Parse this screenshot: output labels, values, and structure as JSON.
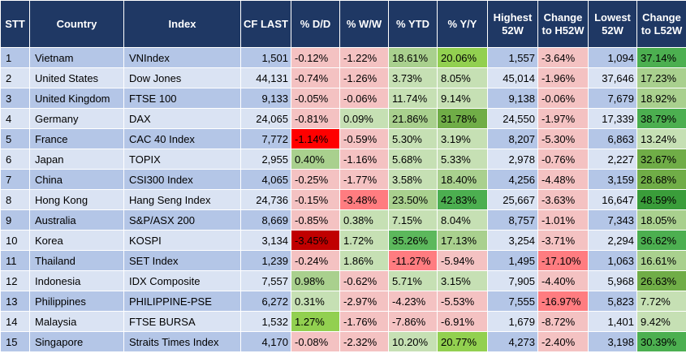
{
  "columns": [
    "STT",
    "Country",
    "Index",
    "CF LAST",
    "% D/D",
    "% W/W",
    "% YTD",
    "% Y/Y",
    "Highest 52W",
    "Change to H52W",
    "Lowest 52W",
    "Change to L52W"
  ],
  "rows": [
    {
      "stt": "1",
      "country": "Vietnam",
      "index": "VNIndex",
      "last": "1,501",
      "dd": "-0.12%",
      "ww": "-1.22%",
      "ytd": "18.61%",
      "yy": "20.06%",
      "high": "1,557",
      "chg_high": "-3.64%",
      "low": "1,094",
      "chg_low": "37.14%",
      "colors": {
        "dd": "#f4c2c2",
        "ww": "#f4c2c2",
        "ytd": "#a9d08e",
        "yy": "#92d050",
        "chg_high": "#f4c2c2",
        "chg_low": "#4caf50"
      }
    },
    {
      "stt": "2",
      "country": "United States",
      "index": "Dow Jones",
      "last": "44,131",
      "dd": "-0.74%",
      "ww": "-1.26%",
      "ytd": "3.73%",
      "yy": "8.05%",
      "high": "45,014",
      "chg_high": "-1.96%",
      "low": "37,646",
      "chg_low": "17.23%",
      "colors": {
        "dd": "#f4c2c2",
        "ww": "#f4c2c2",
        "ytd": "#c6e0b4",
        "yy": "#c6e0b4",
        "chg_high": "#f4c2c2",
        "chg_low": "#a9d08e"
      }
    },
    {
      "stt": "3",
      "country": "United Kingdom",
      "index": "FTSE 100",
      "last": "9,133",
      "dd": "-0.05%",
      "ww": "-0.06%",
      "ytd": "11.74%",
      "yy": "9.14%",
      "high": "9,138",
      "chg_high": "-0.06%",
      "low": "7,679",
      "chg_low": "18.92%",
      "colors": {
        "dd": "#f4c2c2",
        "ww": "#f4c2c2",
        "ytd": "#c6e0b4",
        "yy": "#c6e0b4",
        "chg_high": "#f4c2c2",
        "chg_low": "#a9d08e"
      }
    },
    {
      "stt": "4",
      "country": "Germany",
      "index": "DAX",
      "last": "24,065",
      "dd": "-0.81%",
      "ww": "0.09%",
      "ytd": "21.86%",
      "yy": "31.78%",
      "high": "24,550",
      "chg_high": "-1.97%",
      "low": "17,339",
      "chg_low": "38.79%",
      "colors": {
        "dd": "#f4c2c2",
        "ww": "#c6e0b4",
        "ytd": "#a9d08e",
        "yy": "#70ad47",
        "chg_high": "#f4c2c2",
        "chg_low": "#4caf50"
      }
    },
    {
      "stt": "5",
      "country": "France",
      "index": "CAC 40 Index",
      "last": "7,772",
      "dd": "-1.14%",
      "ww": "-0.59%",
      "ytd": "5.30%",
      "yy": "3.19%",
      "high": "8,207",
      "chg_high": "-5.30%",
      "low": "6,863",
      "chg_low": "13.24%",
      "colors": {
        "dd": "#ff0000",
        "ww": "#f4c2c2",
        "ytd": "#c6e0b4",
        "yy": "#c6e0b4",
        "chg_high": "#f4c2c2",
        "chg_low": "#c6e0b4"
      }
    },
    {
      "stt": "6",
      "country": "Japan",
      "index": "TOPIX",
      "last": "2,955",
      "dd": "0.40%",
      "ww": "-1.16%",
      "ytd": "5.68%",
      "yy": "5.33%",
      "high": "2,978",
      "chg_high": "-0.76%",
      "low": "2,227",
      "chg_low": "32.67%",
      "colors": {
        "dd": "#a9d08e",
        "ww": "#f4c2c2",
        "ytd": "#c6e0b4",
        "yy": "#c6e0b4",
        "chg_high": "#f4c2c2",
        "chg_low": "#70ad47"
      }
    },
    {
      "stt": "7",
      "country": "China",
      "index": "CSI300 Index",
      "last": "4,065",
      "dd": "-0.25%",
      "ww": "-1.77%",
      "ytd": "3.58%",
      "yy": "18.40%",
      "high": "4,256",
      "chg_high": "-4.48%",
      "low": "3,159",
      "chg_low": "28.68%",
      "colors": {
        "dd": "#f4c2c2",
        "ww": "#f4c2c2",
        "ytd": "#c6e0b4",
        "yy": "#a9d08e",
        "chg_high": "#f4c2c2",
        "chg_low": "#70ad47"
      }
    },
    {
      "stt": "8",
      "country": "Hong Kong",
      "index": "Hang Seng Index",
      "last": "24,736",
      "dd": "-0.15%",
      "ww": "-3.48%",
      "ytd": "23.50%",
      "yy": "42.83%",
      "high": "25,667",
      "chg_high": "-3.63%",
      "low": "16,647",
      "chg_low": "48.59%",
      "colors": {
        "dd": "#f4c2c2",
        "ww": "#ff7c80",
        "ytd": "#a9d08e",
        "yy": "#4caf50",
        "chg_high": "#f4c2c2",
        "chg_low": "#3a9d3a"
      }
    },
    {
      "stt": "9",
      "country": "Australia",
      "index": "S&P/ASX 200",
      "last": "8,669",
      "dd": "-0.85%",
      "ww": "0.38%",
      "ytd": "7.15%",
      "yy": "8.04%",
      "high": "8,757",
      "chg_high": "-1.01%",
      "low": "7,343",
      "chg_low": "18.05%",
      "colors": {
        "dd": "#f4c2c2",
        "ww": "#c6e0b4",
        "ytd": "#c6e0b4",
        "yy": "#c6e0b4",
        "chg_high": "#f4c2c2",
        "chg_low": "#a9d08e"
      }
    },
    {
      "stt": "10",
      "country": "Korea",
      "index": "KOSPI",
      "last": "3,134",
      "dd": "-3.45%",
      "ww": "1.72%",
      "ytd": "35.26%",
      "yy": "17.13%",
      "high": "3,254",
      "chg_high": "-3.71%",
      "low": "2,294",
      "chg_low": "36.62%",
      "colors": {
        "dd": "#c00000",
        "ww": "#c6e0b4",
        "ytd": "#5cb85c",
        "yy": "#a9d08e",
        "chg_high": "#f4c2c2",
        "chg_low": "#4caf50"
      }
    },
    {
      "stt": "11",
      "country": "Thailand",
      "index": "SET Index",
      "last": "1,239",
      "dd": "-0.24%",
      "ww": "1.86%",
      "ytd": "-11.27%",
      "yy": "-5.94%",
      "high": "1,495",
      "chg_high": "-17.10%",
      "low": "1,063",
      "chg_low": "16.61%",
      "colors": {
        "dd": "#f4c2c2",
        "ww": "#c6e0b4",
        "ytd": "#ff7c80",
        "yy": "#f4c2c2",
        "chg_high": "#ff7c80",
        "chg_low": "#a9d08e"
      }
    },
    {
      "stt": "12",
      "country": "Indonesia",
      "index": "IDX Composite",
      "last": "7,557",
      "dd": "0.98%",
      "ww": "-0.62%",
      "ytd": "5.71%",
      "yy": "3.15%",
      "high": "7,905",
      "chg_high": "-4.40%",
      "low": "5,968",
      "chg_low": "26.63%",
      "colors": {
        "dd": "#a9d08e",
        "ww": "#f4c2c2",
        "ytd": "#c6e0b4",
        "yy": "#c6e0b4",
        "chg_high": "#f4c2c2",
        "chg_low": "#70ad47"
      }
    },
    {
      "stt": "13",
      "country": "Philippines",
      "index": "PHILIPPINE-PSE",
      "last": "6,272",
      "dd": "0.31%",
      "ww": "-2.97%",
      "ytd": "-4.23%",
      "yy": "-5.53%",
      "high": "7,555",
      "chg_high": "-16.97%",
      "low": "5,823",
      "chg_low": "7.72%",
      "colors": {
        "dd": "#c6e0b4",
        "ww": "#f4c2c2",
        "ytd": "#f4c2c2",
        "yy": "#f4c2c2",
        "chg_high": "#ff7c80",
        "chg_low": "#c6e0b4"
      }
    },
    {
      "stt": "14",
      "country": "Malaysia",
      "index": "FTSE BURSA",
      "last": "1,532",
      "dd": "1.27%",
      "ww": "-1.76%",
      "ytd": "-7.86%",
      "yy": "-6.91%",
      "high": "1,679",
      "chg_high": "-8.72%",
      "low": "1,401",
      "chg_low": "9.42%",
      "colors": {
        "dd": "#92d050",
        "ww": "#f4c2c2",
        "ytd": "#f4c2c2",
        "yy": "#f4c2c2",
        "chg_high": "#f4c2c2",
        "chg_low": "#c6e0b4"
      }
    },
    {
      "stt": "15",
      "country": "Singapore",
      "index": "Straits Times Index",
      "last": "4,170",
      "dd": "-0.08%",
      "ww": "-2.32%",
      "ytd": "10.20%",
      "yy": "20.77%",
      "high": "4,273",
      "chg_high": "-2.40%",
      "low": "3,198",
      "chg_low": "30.39%",
      "colors": {
        "dd": "#f4c2c2",
        "ww": "#f4c2c2",
        "ytd": "#c6e0b4",
        "yy": "#92d050",
        "chg_high": "#f4c2c2",
        "chg_low": "#4caf50"
      }
    }
  ]
}
